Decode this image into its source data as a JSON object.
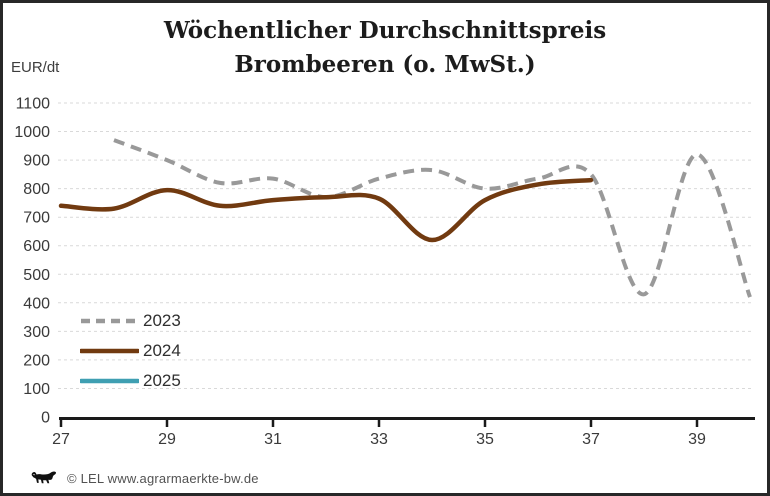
{
  "title": {
    "line1": "Wöchentlicher Durchschnittspreis",
    "line2": "Brombeeren (o. MwSt.)"
  },
  "y_axis_unit": "EUR/dt",
  "footer": {
    "logo_icon": "baden-wuerttemberg-lion-icon",
    "copyright": "© LEL www.agrarmaerkte-bw.de"
  },
  "chart_data": {
    "type": "line",
    "title": "Wöchentlicher Durchschnittspreis Brombeeren (o. MwSt.)",
    "xlabel": "",
    "ylabel": "EUR/dt",
    "xlim": [
      27,
      40.2
    ],
    "ylim": [
      0,
      1100
    ],
    "x_ticks": [
      27,
      29,
      31,
      33,
      35,
      37,
      39
    ],
    "y_ticks": [
      0,
      100,
      200,
      300,
      400,
      500,
      600,
      700,
      800,
      900,
      1000,
      1100
    ],
    "grid": true,
    "grid_color": "#d9d9d9",
    "axis_color": "#1a1a1a",
    "tick_label_color": "#3a3a3a",
    "legend_position": "left-middle",
    "series": [
      {
        "name": "2023",
        "color": "#999999",
        "style": "dashed",
        "x": [
          28,
          29,
          30,
          31,
          32,
          33,
          34,
          35,
          36,
          37,
          38,
          39,
          40
        ],
        "values": [
          970,
          900,
          820,
          835,
          770,
          835,
          865,
          800,
          835,
          850,
          430,
          920,
          420
        ]
      },
      {
        "name": "2024",
        "color": "#713a10",
        "style": "solid",
        "x": [
          27,
          28,
          29,
          30,
          31,
          32,
          33,
          34,
          35,
          36,
          37
        ],
        "values": [
          740,
          730,
          795,
          740,
          760,
          770,
          765,
          620,
          760,
          815,
          830
        ]
      },
      {
        "name": "2025",
        "color": "#3f9fb2",
        "style": "solid",
        "x": [],
        "values": []
      }
    ]
  }
}
